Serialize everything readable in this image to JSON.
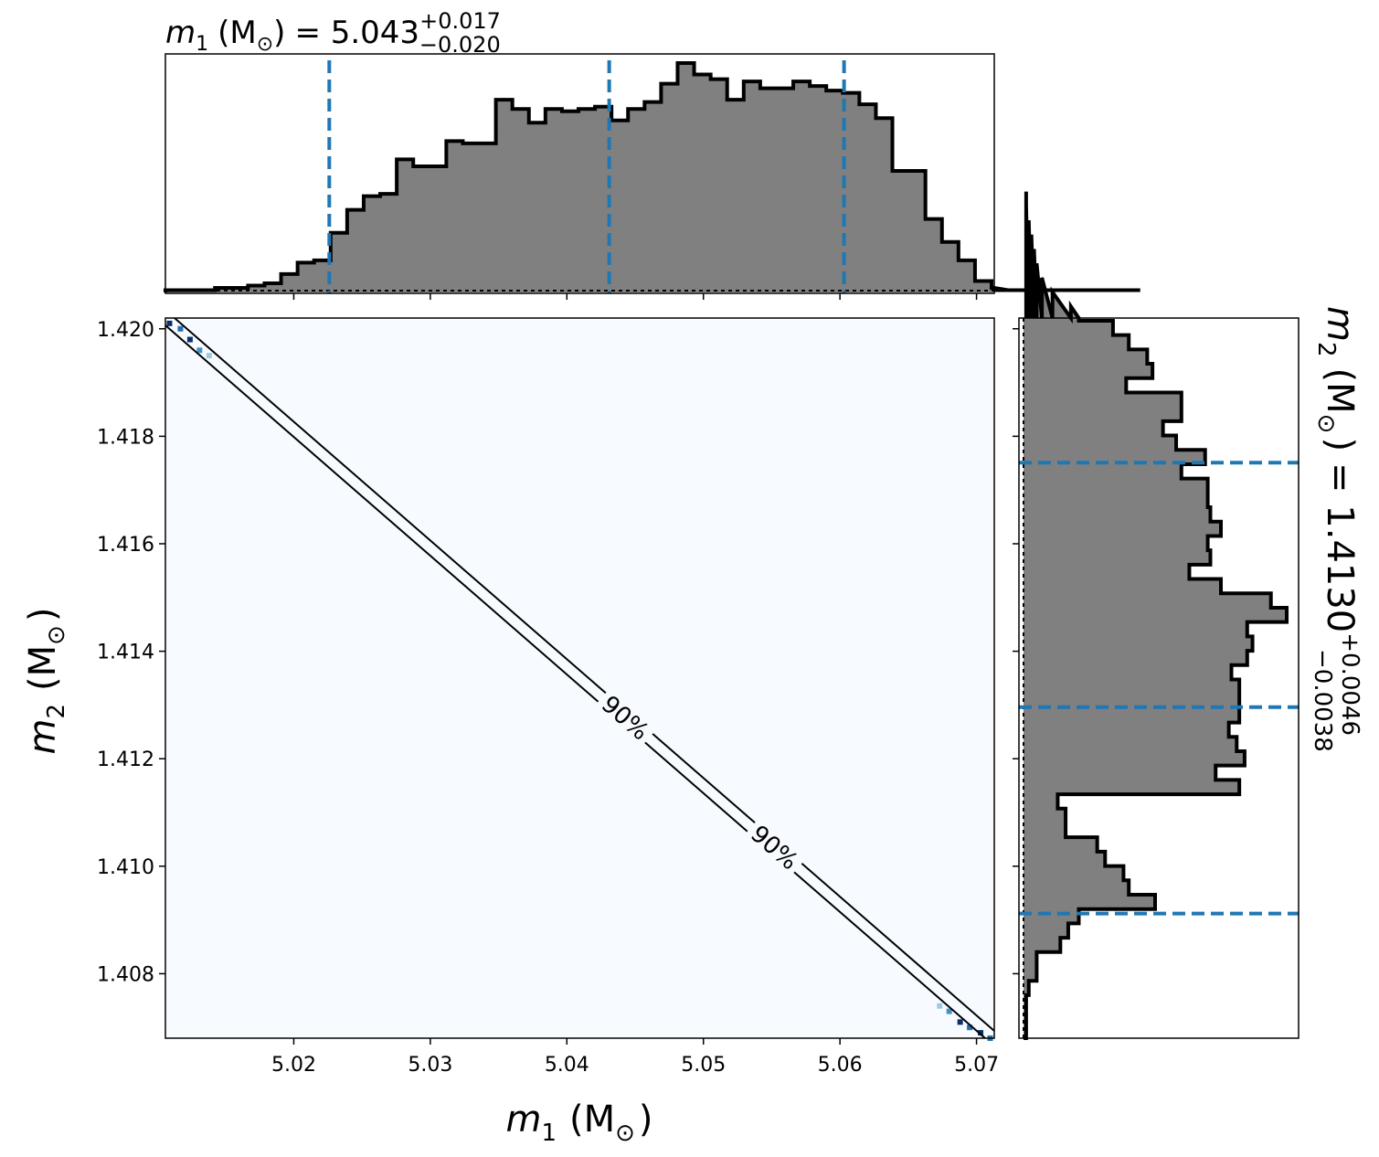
{
  "chart_data": [
    {
      "type": "histogram",
      "panel": "top marginal",
      "title": {
        "var": "m",
        "sub": "1",
        "unit": "(M",
        "unit_sub": "⊙",
        "unit_close": ")",
        "eq": "= 5.043",
        "upper": "+0.017",
        "lower": "−0.020"
      },
      "xlim": [
        5.0106,
        5.0713
      ],
      "ylim": [
        0,
        1
      ],
      "bin_edges_start": 5.0106,
      "bin_width": 0.00121,
      "values": [
        0.01,
        0.01,
        0.01,
        0.02,
        0.02,
        0.03,
        0.04,
        0.08,
        0.13,
        0.14,
        0.26,
        0.36,
        0.42,
        0.43,
        0.58,
        0.55,
        0.55,
        0.66,
        0.65,
        0.65,
        0.84,
        0.8,
        0.74,
        0.8,
        0.79,
        0.8,
        0.81,
        0.75,
        0.8,
        0.83,
        0.91,
        1.0,
        0.95,
        0.93,
        0.84,
        0.92,
        0.89,
        0.89,
        0.92,
        0.9,
        0.88,
        0.87,
        0.82,
        0.76,
        0.53,
        0.53,
        0.32,
        0.22,
        0.14,
        0.05,
        0.02,
        0.01,
        0.01,
        0.01,
        0.01,
        0.01,
        0.01,
        0.01,
        0.01,
        0.01
      ],
      "quantile_lines": [
        5.0226,
        5.0431,
        5.0603
      ],
      "quantile_color": "#1f77b4",
      "fill_color": "#808080"
    },
    {
      "type": "heatmap",
      "panel": "joint",
      "xlabel": {
        "var": "m",
        "sub": "1",
        "unit": "(M",
        "unit_sub": "⊙",
        "unit_close": ")"
      },
      "ylabel": {
        "var": "m",
        "sub": "2",
        "unit": "(M",
        "unit_sub": "⊙",
        "unit_close": ")"
      },
      "xlim": [
        5.0106,
        5.0713
      ],
      "ylim": [
        1.4068,
        1.4202
      ],
      "xticks": [
        5.02,
        5.03,
        5.04,
        5.05,
        5.06,
        5.07
      ],
      "xtick_labels": [
        "5.02",
        "5.03",
        "5.04",
        "5.05",
        "5.06",
        "5.07"
      ],
      "yticks": [
        1.408,
        1.41,
        1.412,
        1.414,
        1.416,
        1.418,
        1.42
      ],
      "ytick_labels": [
        "1.408",
        "1.410",
        "1.412",
        "1.414",
        "1.416",
        "1.418",
        "1.420"
      ],
      "background_color": "#f7fbff",
      "diagonal": {
        "from": [
          5.0106,
          1.4202
        ],
        "to": [
          5.0713,
          1.4068
        ]
      },
      "contour_labels": [
        "90%",
        "90%"
      ],
      "dense_cells_top": [
        [
          5.0109,
          1.4201,
          "#08306b"
        ],
        [
          5.0117,
          1.42,
          "#2171b5"
        ],
        [
          5.0124,
          1.4198,
          "#08306b"
        ],
        [
          5.0131,
          1.4196,
          "#4292c6"
        ],
        [
          5.0138,
          1.4195,
          "#9ecae1"
        ]
      ],
      "dense_cells_bottom": [
        [
          5.0673,
          1.4074,
          "#9ecae1"
        ],
        [
          5.068,
          1.4073,
          "#4292c6"
        ],
        [
          5.0688,
          1.4071,
          "#08306b"
        ],
        [
          5.0695,
          1.407,
          "#2171b5"
        ],
        [
          5.0703,
          1.4069,
          "#08306b"
        ],
        [
          5.071,
          1.4068,
          "#2171b5"
        ]
      ]
    },
    {
      "type": "histogram",
      "panel": "right marginal",
      "orientation": "horizontal",
      "title": {
        "var": "m",
        "sub": "2",
        "unit": "(M",
        "unit_sub": "⊙",
        "unit_close": ")",
        "eq": "= 1.4130",
        "upper": "+0.0046",
        "lower": "−0.0038"
      },
      "ylim": [
        1.4068,
        1.4202
      ],
      "xlim": [
        0,
        1
      ],
      "bin_edges_start": 1.4068,
      "bin_width": 0.000267,
      "values": [
        0.01,
        0.01,
        0.01,
        0.02,
        0.05,
        0.05,
        0.14,
        0.17,
        0.21,
        0.5,
        0.4,
        0.38,
        0.31,
        0.28,
        0.16,
        0.16,
        0.13,
        0.82,
        0.73,
        0.84,
        0.81,
        0.78,
        0.82,
        0.82,
        0.82,
        0.79,
        0.85,
        0.87,
        0.85,
        1.0,
        0.94,
        0.75,
        0.63,
        0.71,
        0.7,
        0.75,
        0.71,
        0.7,
        0.7,
        0.6,
        0.69,
        0.58,
        0.53,
        0.6,
        0.6,
        0.39,
        0.49,
        0.47,
        0.4,
        0.34,
        0.21,
        0.18,
        0.11,
        0.07,
        0.05,
        0.04,
        0.03,
        0.02,
        0.01,
        0.01
      ],
      "quantile_lines": [
        1.40912,
        1.41296,
        1.41751
      ],
      "quantile_color": "#1f77b4",
      "fill_color": "#808080"
    }
  ]
}
